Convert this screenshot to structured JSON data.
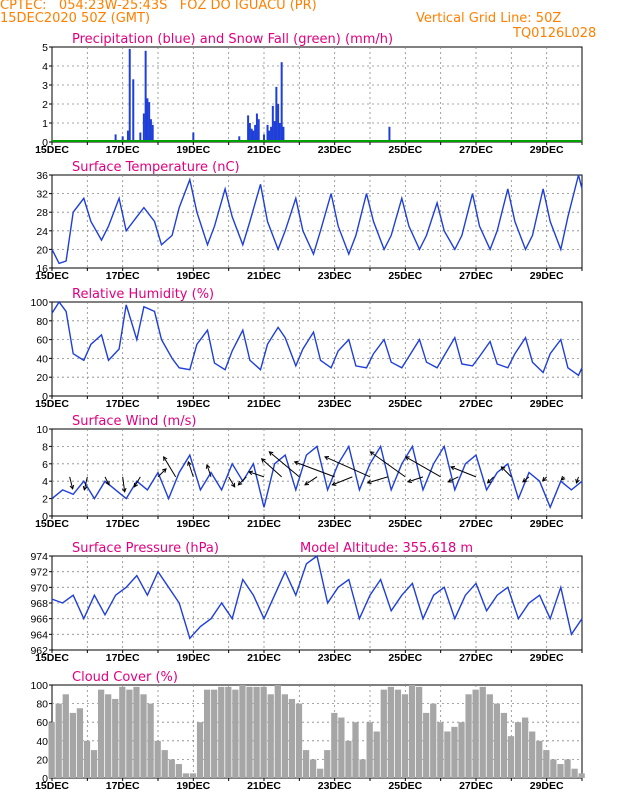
{
  "header": {
    "line1": "CPTEC:   054:23W-25:43S   FOZ DO IGUACU (PR)",
    "line2": "15DEC2020 50Z (GMT)",
    "grid_note": "Vertical Grid Line: 50Z",
    "run_code": "TQ0126L028"
  },
  "colors": {
    "header": "#ff8000",
    "title": "#e0007f",
    "line": "#1f3fd8",
    "snow": "#00a000",
    "cloud": "#a6a6a6"
  },
  "chart_data": [
    {
      "type": "bar",
      "title": "Precipitation (blue) and Snow Fall (green) (mm/h)",
      "ylim": [
        0,
        5
      ],
      "yticks": [
        0,
        1,
        2,
        3,
        4,
        5
      ],
      "series": [
        {
          "name": "Precipitation",
          "color": "#1f3fd8",
          "x": [
            16.8,
            17.0,
            17.15,
            17.2,
            17.3,
            17.5,
            17.6,
            17.65,
            17.7,
            17.75,
            17.8,
            17.85,
            19.0,
            20.3,
            20.55,
            20.6,
            20.65,
            20.7,
            20.75,
            20.8,
            20.85,
            21.0,
            21.1,
            21.15,
            21.2,
            21.25,
            21.3,
            21.35,
            21.4,
            21.45,
            21.5,
            21.55,
            24.55
          ],
          "values": [
            0.4,
            0.3,
            0.6,
            4.9,
            3.3,
            0.5,
            1.5,
            4.8,
            2.3,
            2.1,
            1.2,
            0.9,
            0.5,
            0.3,
            1.4,
            1.0,
            0.7,
            0.6,
            0.9,
            1.5,
            1.2,
            0.4,
            0.9,
            0.6,
            0.8,
            1.9,
            1.1,
            2.9,
            2.0,
            1.0,
            4.2,
            0.8,
            0.8
          ]
        },
        {
          "name": "Snow Fall",
          "color": "#00a000",
          "x": [
            15.0,
            30.0
          ],
          "values": [
            0.05,
            0.05
          ]
        }
      ],
      "xticks": [
        "15DEC",
        "17DEC",
        "19DEC",
        "21DEC",
        "23DEC",
        "25DEC",
        "27DEC",
        "29DEC"
      ]
    },
    {
      "type": "line",
      "title": "Surface Temperature (nC)",
      "ylim": [
        16,
        36
      ],
      "yticks": [
        16,
        20,
        24,
        28,
        32,
        36
      ],
      "x": [
        15.0,
        15.2,
        15.4,
        15.6,
        15.9,
        16.1,
        16.4,
        16.6,
        16.9,
        17.1,
        17.4,
        17.6,
        17.9,
        18.1,
        18.4,
        18.6,
        18.9,
        19.1,
        19.4,
        19.6,
        19.9,
        20.1,
        20.4,
        20.6,
        20.9,
        21.1,
        21.4,
        21.6,
        21.9,
        22.1,
        22.4,
        22.6,
        22.9,
        23.1,
        23.4,
        23.6,
        23.9,
        24.1,
        24.4,
        24.6,
        24.9,
        25.1,
        25.4,
        25.6,
        25.9,
        26.1,
        26.4,
        26.6,
        26.9,
        27.1,
        27.4,
        27.6,
        27.9,
        28.1,
        28.4,
        28.6,
        28.9,
        29.1,
        29.4,
        29.6,
        29.9,
        30.0
      ],
      "values": [
        20,
        17,
        17.5,
        28,
        31,
        26,
        22,
        25,
        31,
        24,
        27,
        29,
        26,
        21,
        23,
        29,
        35,
        28,
        21,
        25,
        33,
        27,
        21,
        26,
        34,
        26,
        20,
        24,
        31,
        24,
        19,
        24,
        32,
        25,
        19,
        23,
        32,
        26,
        20,
        23,
        31,
        25,
        20,
        23,
        30,
        24,
        20,
        23,
        32,
        25,
        20,
        24,
        33,
        26,
        20,
        23,
        33,
        26,
        20,
        27,
        36,
        33
      ]
    },
    {
      "type": "line",
      "title": "Relative Humidity (%)",
      "ylim": [
        0,
        100
      ],
      "yticks": [
        0,
        20,
        40,
        60,
        80,
        100
      ],
      "x": [
        15.0,
        15.2,
        15.4,
        15.6,
        15.9,
        16.1,
        16.4,
        16.6,
        16.9,
        17.1,
        17.4,
        17.6,
        17.9,
        18.1,
        18.4,
        18.6,
        18.9,
        19.1,
        19.4,
        19.6,
        19.9,
        20.1,
        20.4,
        20.6,
        20.9,
        21.1,
        21.4,
        21.6,
        21.9,
        22.1,
        22.4,
        22.6,
        22.9,
        23.1,
        23.4,
        23.6,
        23.9,
        24.1,
        24.4,
        24.6,
        24.9,
        25.1,
        25.4,
        25.6,
        25.9,
        26.1,
        26.4,
        26.6,
        26.9,
        27.1,
        27.4,
        27.6,
        27.9,
        28.1,
        28.4,
        28.6,
        28.9,
        29.1,
        29.4,
        29.6,
        29.9,
        30.0
      ],
      "values": [
        88,
        100,
        90,
        45,
        38,
        55,
        65,
        38,
        50,
        97,
        60,
        95,
        90,
        60,
        40,
        30,
        28,
        55,
        70,
        35,
        28,
        48,
        70,
        38,
        28,
        55,
        73,
        62,
        32,
        50,
        68,
        38,
        30,
        48,
        60,
        32,
        30,
        45,
        60,
        36,
        30,
        42,
        60,
        36,
        30,
        43,
        62,
        34,
        32,
        42,
        58,
        34,
        30,
        45,
        62,
        36,
        25,
        45,
        60,
        30,
        22,
        30
      ]
    },
    {
      "type": "line",
      "title": "Surface Wind (m/s)",
      "ylim": [
        0,
        10
      ],
      "yticks": [
        0,
        2,
        4,
        6,
        8,
        10
      ],
      "x": [
        15.0,
        15.3,
        15.6,
        15.9,
        16.2,
        16.5,
        16.8,
        17.1,
        17.4,
        17.7,
        18.0,
        18.3,
        18.6,
        18.9,
        19.2,
        19.5,
        19.8,
        20.1,
        20.4,
        20.7,
        21.0,
        21.3,
        21.6,
        21.9,
        22.2,
        22.5,
        22.8,
        23.1,
        23.4,
        23.7,
        24.0,
        24.3,
        24.6,
        24.9,
        25.2,
        25.5,
        25.8,
        26.1,
        26.4,
        26.7,
        27.0,
        27.3,
        27.6,
        27.9,
        28.2,
        28.5,
        28.8,
        29.1,
        29.4,
        29.7,
        30.0
      ],
      "values": [
        2,
        3,
        2.5,
        4,
        2,
        4,
        3,
        2,
        4,
        3,
        5,
        2,
        5,
        7,
        3,
        5,
        3,
        6,
        4,
        6,
        1,
        6,
        7,
        3,
        7,
        8,
        3,
        6,
        8,
        3,
        6,
        8,
        3,
        6,
        8,
        3,
        6,
        8,
        3,
        6,
        7,
        3,
        5,
        6,
        2,
        5,
        4,
        1,
        4,
        3,
        4
      ],
      "arrows": [
        {
          "x": 15.5,
          "u": 0.3,
          "v": -1.2
        },
        {
          "x": 16.0,
          "u": -0.3,
          "v": -1.3
        },
        {
          "x": 16.5,
          "u": 0.4,
          "v": -0.8
        },
        {
          "x": 17.0,
          "u": 0.2,
          "v": -1.5
        },
        {
          "x": 17.5,
          "u": -0.6,
          "v": -1.0
        },
        {
          "x": 18.0,
          "u": 0.8,
          "v": 0.8
        },
        {
          "x": 18.5,
          "u": -1.2,
          "v": 2.0
        },
        {
          "x": 19.0,
          "u": -0.5,
          "v": 1.5
        },
        {
          "x": 19.5,
          "u": -0.4,
          "v": 1.2
        },
        {
          "x": 20.0,
          "u": 0.6,
          "v": -1.0
        },
        {
          "x": 20.5,
          "u": -0.8,
          "v": -0.8
        },
        {
          "x": 21.0,
          "u": -1.5,
          "v": 0.5
        },
        {
          "x": 21.5,
          "u": -2.0,
          "v": 1.8
        },
        {
          "x": 22.0,
          "u": -3.0,
          "v": 2.5
        },
        {
          "x": 22.5,
          "u": -1.2,
          "v": -0.8
        },
        {
          "x": 23.0,
          "u": -4.0,
          "v": 1.5
        },
        {
          "x": 23.5,
          "u": -2.0,
          "v": -0.8
        },
        {
          "x": 24.0,
          "u": -4.5,
          "v": 2.0
        },
        {
          "x": 24.5,
          "u": -2.0,
          "v": -0.6
        },
        {
          "x": 25.0,
          "u": -3.5,
          "v": 2.5
        },
        {
          "x": 25.5,
          "u": -1.5,
          "v": -0.5
        },
        {
          "x": 26.0,
          "u": -3.5,
          "v": 2.0
        },
        {
          "x": 26.5,
          "u": -1.0,
          "v": -0.5
        },
        {
          "x": 27.0,
          "u": -2.5,
          "v": 1.0
        },
        {
          "x": 27.5,
          "u": -0.6,
          "v": -0.6
        },
        {
          "x": 28.0,
          "u": -1.0,
          "v": 1.0
        },
        {
          "x": 28.5,
          "u": -0.6,
          "v": -0.5
        },
        {
          "x": 29.0,
          "u": -0.4,
          "v": -0.4
        },
        {
          "x": 29.5,
          "u": -0.3,
          "v": -0.3
        },
        {
          "x": 29.9,
          "u": -0.2,
          "v": -0.6
        }
      ]
    },
    {
      "type": "line",
      "title": "Surface Pressure (hPa)",
      "subtitle": "Model Altitude: 355.618  m",
      "ylim": [
        962,
        974
      ],
      "yticks": [
        962,
        964,
        966,
        968,
        970,
        972,
        974
      ],
      "x": [
        15.0,
        15.3,
        15.6,
        15.9,
        16.2,
        16.5,
        16.8,
        17.1,
        17.4,
        17.7,
        18.0,
        18.3,
        18.6,
        18.9,
        19.2,
        19.5,
        19.8,
        20.1,
        20.4,
        20.7,
        21.0,
        21.3,
        21.6,
        21.9,
        22.2,
        22.5,
        22.8,
        23.1,
        23.4,
        23.7,
        24.0,
        24.3,
        24.6,
        24.9,
        25.2,
        25.5,
        25.8,
        26.1,
        26.4,
        26.7,
        27.0,
        27.3,
        27.6,
        27.9,
        28.2,
        28.5,
        28.8,
        29.1,
        29.4,
        29.7,
        30.0
      ],
      "values": [
        968.5,
        968,
        969,
        966,
        969,
        966.5,
        969,
        970,
        971.5,
        969,
        972,
        970,
        968,
        963.5,
        965,
        966,
        968,
        966,
        971,
        969,
        966,
        969,
        972,
        969,
        973,
        974,
        968,
        970,
        971,
        966,
        969,
        971,
        967,
        969,
        970.5,
        966,
        969,
        970,
        966,
        969,
        970.5,
        967,
        969,
        970,
        966,
        968,
        969,
        966,
        970,
        964,
        966
      ]
    },
    {
      "type": "bar",
      "title": "Cloud Cover (%)",
      "ylim": [
        0,
        100
      ],
      "yticks": [
        0,
        20,
        40,
        60,
        80,
        100
      ],
      "x": [
        15.0,
        15.2,
        15.4,
        15.6,
        15.8,
        16.0,
        16.2,
        16.4,
        16.6,
        16.8,
        17.0,
        17.2,
        17.4,
        17.6,
        17.8,
        18.0,
        18.2,
        18.4,
        18.6,
        18.8,
        19.0,
        19.2,
        19.4,
        19.6,
        19.8,
        20.0,
        20.2,
        20.4,
        20.6,
        20.8,
        21.0,
        21.2,
        21.4,
        21.6,
        21.8,
        22.0,
        22.2,
        22.4,
        22.6,
        22.8,
        23.0,
        23.2,
        23.4,
        23.6,
        23.8,
        24.0,
        24.2,
        24.4,
        24.6,
        24.8,
        25.0,
        25.2,
        25.4,
        25.6,
        25.8,
        26.0,
        26.2,
        26.4,
        26.6,
        26.8,
        27.0,
        27.2,
        27.4,
        27.6,
        27.8,
        28.0,
        28.2,
        28.4,
        28.6,
        28.8,
        29.0,
        29.2,
        29.4,
        29.6,
        29.8,
        30.0
      ],
      "values": [
        60,
        80,
        90,
        70,
        75,
        40,
        30,
        95,
        90,
        85,
        98,
        95,
        98,
        90,
        80,
        40,
        30,
        20,
        15,
        5,
        5,
        60,
        95,
        95,
        98,
        98,
        95,
        100,
        98,
        98,
        98,
        90,
        100,
        90,
        85,
        80,
        30,
        20,
        10,
        30,
        70,
        65,
        40,
        60,
        20,
        60,
        50,
        95,
        98,
        95,
        90,
        100,
        98,
        70,
        80,
        60,
        50,
        55,
        60,
        90,
        95,
        98,
        90,
        80,
        70,
        45,
        60,
        65,
        50,
        40,
        30,
        20,
        15,
        20,
        10,
        5
      ]
    }
  ]
}
